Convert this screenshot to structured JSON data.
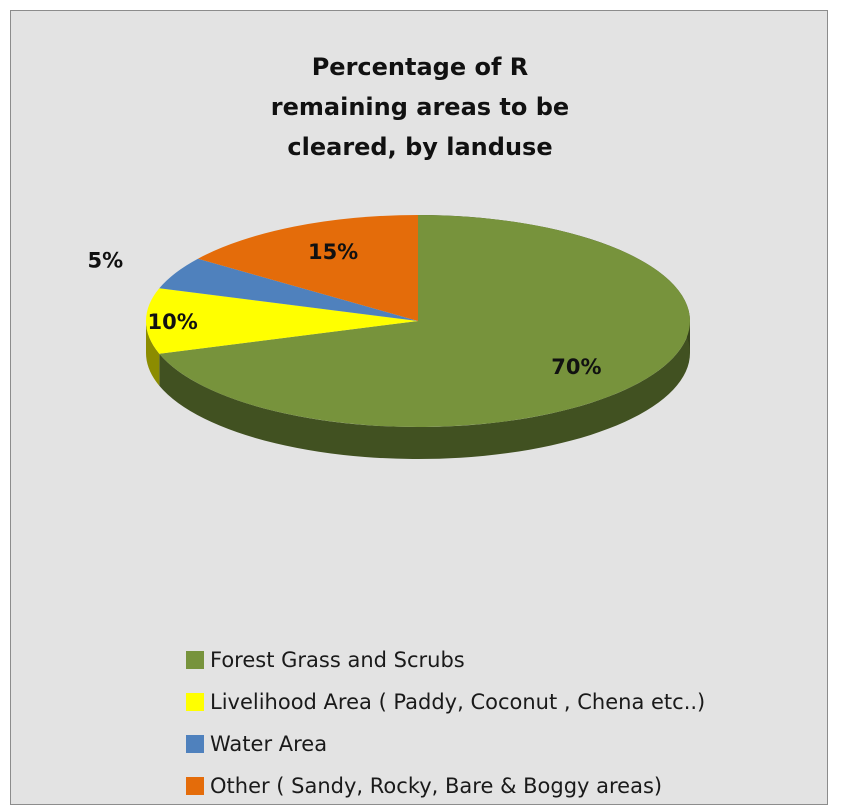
{
  "chart_data": {
    "type": "pie",
    "title_lines": [
      "Percentage of R",
      "remaining areas to be",
      "cleared, by landuse"
    ],
    "categories": [
      "Forest Grass and Scrubs",
      "Livelihood Area ( Paddy, Coconut , Chena etc..)",
      "Water Area",
      "Other ( Sandy, Rocky, Bare & Boggy areas)"
    ],
    "values": [
      70,
      10,
      5,
      15
    ],
    "data_labels": [
      "70%",
      "10%",
      "5%",
      "15%"
    ],
    "colors": [
      "#77933c",
      "#ffff00",
      "#4f81bd",
      "#e46c0a"
    ],
    "legend_position": "bottom",
    "style": "3d-pie"
  }
}
